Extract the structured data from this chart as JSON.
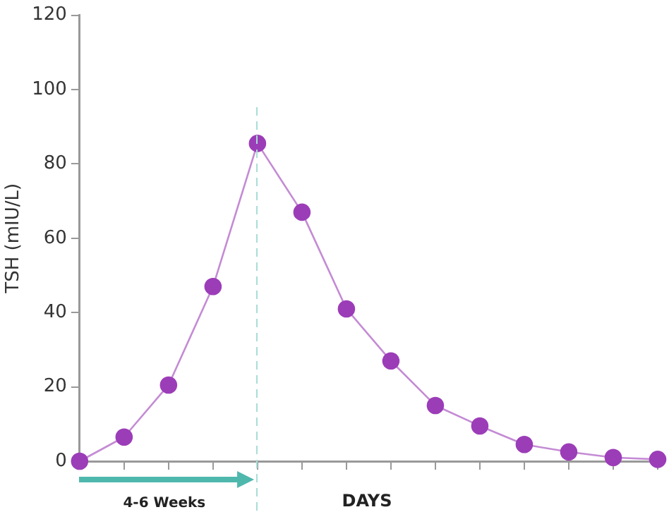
{
  "chart_data": {
    "type": "line",
    "ylabel": "TSH (mIU/L)",
    "xlabel": "DAYS",
    "categories": [
      null,
      null,
      null,
      null,
      null,
      null,
      null,
      null,
      null,
      null,
      null,
      null,
      null,
      null
    ],
    "series": [
      {
        "color": "#9c3db8",
        "values": [
          0,
          6.5,
          20.5,
          47,
          85.5,
          67,
          41,
          27,
          15,
          9.5,
          4.5,
          2.5,
          1,
          0.5
        ]
      }
    ],
    "ylim": [
      0,
      120
    ],
    "yticks": [
      0,
      20,
      40,
      60,
      80,
      100,
      120
    ],
    "tick_labels": "y",
    "grid": false,
    "legend": false,
    "marker": "circle",
    "line_style": "solid",
    "annotations": [
      "4-6 Weeks"
    ]
  }
}
